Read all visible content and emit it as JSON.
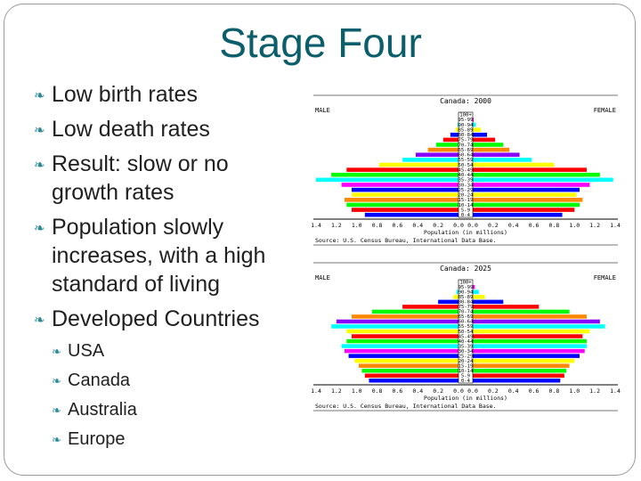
{
  "slide": {
    "title": "Stage Four",
    "bullets": [
      {
        "level": 1,
        "text": "Low birth rates"
      },
      {
        "level": 1,
        "text": "Low death rates"
      },
      {
        "level": 1,
        "text": "Result: slow or no growth rates"
      },
      {
        "level": 1,
        "text": "Population slowly increases, with a high standard of living"
      },
      {
        "level": 1,
        "text": "Developed Countries"
      },
      {
        "level": 2,
        "text": "USA"
      },
      {
        "level": 2,
        "text": "Canada"
      },
      {
        "level": 2,
        "text": "Australia"
      },
      {
        "level": 2,
        "text": "Europe"
      }
    ],
    "bullet_icon": "swoosh-bullet-icon",
    "accent_color": "#0b5e6b"
  },
  "chart_data": [
    {
      "type": "bar",
      "title": "Canada: 2000",
      "left_label": "MALE",
      "right_label": "FEMALE",
      "xlabel": "Population (in millions)",
      "source": "Source: U.S. Census Bureau, International Data Base.",
      "xlim": [
        0,
        1.4
      ],
      "x_ticks": [
        "1.4",
        "1.2",
        "1.0",
        "0.8",
        "0.6",
        "0.4",
        "0.2",
        "0.0",
        "0.0",
        "0.2",
        "0.4",
        "0.6",
        "0.8",
        "1.0",
        "1.2",
        "1.4"
      ],
      "age_groups": [
        "100+",
        "95-99",
        "90-94",
        "85-89",
        "80-84",
        "75-79",
        "70-74",
        "65-69",
        "60-64",
        "55-59",
        "50-54",
        "45-49",
        "40-44",
        "35-39",
        "30-34",
        "25-29",
        "20-24",
        "15-19",
        "10-14",
        "5-9",
        "0-4"
      ],
      "male": [
        0.0,
        0.0,
        0.01,
        0.03,
        0.08,
        0.15,
        0.22,
        0.3,
        0.42,
        0.55,
        0.78,
        1.1,
        1.25,
        1.4,
        1.15,
        1.05,
        1.05,
        1.12,
        1.1,
        1.05,
        0.92
      ],
      "female": [
        0.0,
        0.01,
        0.03,
        0.08,
        0.14,
        0.22,
        0.3,
        0.36,
        0.46,
        0.58,
        0.8,
        1.12,
        1.25,
        1.38,
        1.15,
        1.05,
        1.02,
        1.08,
        1.05,
        1.0,
        0.88
      ],
      "colors": [
        "#000000",
        "#ff00ff",
        "#00ffff",
        "#ffff00",
        "#0000ff",
        "#ff0000",
        "#00ff00",
        "#ff8800",
        "#8800ff",
        "#00ffff",
        "#ffff00",
        "#ff0000",
        "#00ff00",
        "#00ffff",
        "#ff00ff",
        "#0000ff",
        "#ffff00",
        "#ff8800",
        "#00ff00",
        "#ff0000",
        "#0000ff"
      ]
    },
    {
      "type": "bar",
      "title": "Canada: 2025",
      "left_label": "MALE",
      "right_label": "FEMALE",
      "xlabel": "Population (in millions)",
      "source": "Source: U.S. Census Bureau, International Data Base.",
      "xlim": [
        0,
        1.4
      ],
      "x_ticks": [
        "1.4",
        "1.2",
        "1.0",
        "0.8",
        "0.6",
        "0.4",
        "0.2",
        "0.0",
        "0.0",
        "0.2",
        "0.4",
        "0.6",
        "0.8",
        "1.0",
        "1.2",
        "1.4"
      ],
      "age_groups": [
        "100+",
        "95-99",
        "90-94",
        "85-89",
        "80-84",
        "75-79",
        "70-74",
        "65-69",
        "60-64",
        "55-59",
        "50-54",
        "45-49",
        "40-44",
        "35-39",
        "30-34",
        "25-29",
        "20-24",
        "15-19",
        "10-14",
        "5-9",
        "0-4"
      ],
      "male": [
        0.0,
        0.0,
        0.02,
        0.05,
        0.2,
        0.55,
        0.85,
        1.05,
        1.2,
        1.25,
        1.1,
        1.05,
        1.1,
        1.15,
        1.12,
        1.08,
        1.02,
        0.98,
        0.95,
        0.92,
        0.88
      ],
      "female": [
        0.0,
        0.02,
        0.06,
        0.12,
        0.3,
        0.65,
        0.95,
        1.12,
        1.25,
        1.3,
        1.15,
        1.08,
        1.12,
        1.12,
        1.1,
        1.05,
        1.0,
        0.95,
        0.92,
        0.9,
        0.86
      ],
      "colors": [
        "#000000",
        "#ff00ff",
        "#00ffff",
        "#ffff00",
        "#0000ff",
        "#ff0000",
        "#00ff00",
        "#ff8800",
        "#8800ff",
        "#00ffff",
        "#ffff00",
        "#ff0000",
        "#00ff00",
        "#00ffff",
        "#ff00ff",
        "#0000ff",
        "#ffff00",
        "#ff8800",
        "#00ff00",
        "#ff0000",
        "#0000ff"
      ]
    }
  ]
}
